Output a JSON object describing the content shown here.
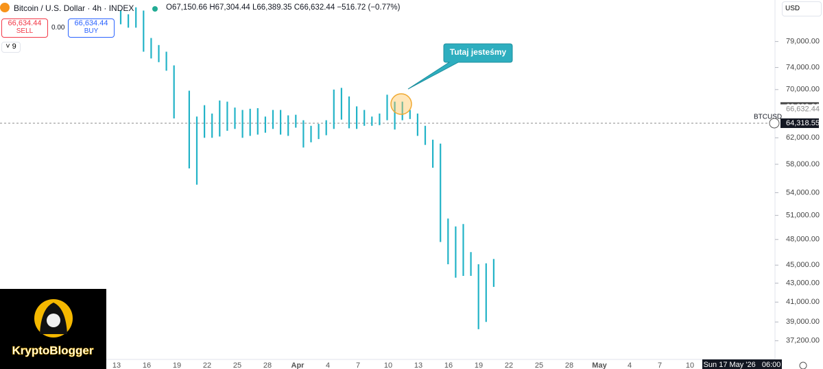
{
  "header": {
    "symbol": "Bitcoin / U.S. Dollar · 4h · INDEX",
    "open": "O67,150.66",
    "high": "H67,304.44",
    "low": "L66,389.35",
    "close": "C66,632.44",
    "change": "−516.72 (−0.77%)"
  },
  "trade": {
    "sell_price": "66,634.44",
    "sell": "SELL",
    "spread": "0.00",
    "buy_price": "66,634.44",
    "buy": "BUY"
  },
  "indicators_count": "9",
  "currency": "USD",
  "annotation": "Tutaj jesteśmy",
  "crosshair_date": "Sun 17 May '26   06:00",
  "logo": "KryptoBlogger",
  "chart_data": {
    "type": "range-bar",
    "color": "#22b3c7",
    "log_scale": true,
    "high": [
      85400,
      84600,
      86100,
      85400,
      79700,
      78300,
      77000,
      74400,
      null,
      69800,
      65400,
      67300,
      65900,
      68100,
      67900,
      66900,
      66500,
      66700,
      66800,
      65400,
      66500,
      66500,
      65600,
      65700,
      64800,
      63900,
      64200,
      64800,
      70000,
      70300,
      68800,
      67100,
      66500,
      65400,
      65900,
      69100,
      67900,
      67900,
      66500,
      65900,
      63900,
      61700,
      61100,
      50600,
      49600,
      49900,
      46500,
      45100,
      45200,
      45700
    ],
    "low": [
      82500,
      81800,
      81800,
      77000,
      75700,
      75000,
      73400,
      65100,
      null,
      57400,
      55100,
      62000,
      62000,
      62200,
      63100,
      63400,
      62000,
      62300,
      62500,
      62800,
      63400,
      62500,
      62300,
      63600,
      60500,
      61300,
      61800,
      62400,
      63400,
      64900,
      63500,
      63400,
      63900,
      63900,
      64000,
      64800,
      63300,
      64800,
      65000,
      62300,
      60900,
      57500,
      47700,
      45100,
      43600,
      43800,
      43800,
      38300,
      39000,
      42600
    ],
    "ylim": [
      35800,
      87700
    ],
    "yticks": [
      {
        "value": 79000,
        "label": "79,000.00"
      },
      {
        "value": 74000,
        "label": "74,000.00"
      },
      {
        "value": 70000,
        "label": "70,000.00"
      },
      {
        "value": 62000,
        "label": "62,000.00"
      },
      {
        "value": 58000,
        "label": "58,000.00"
      },
      {
        "value": 54000,
        "label": "54,000.00"
      },
      {
        "value": 51000,
        "label": "51,000.00"
      },
      {
        "value": 48000,
        "label": "48,000.00"
      },
      {
        "value": 45000,
        "label": "45,000.00"
      },
      {
        "value": 43000,
        "label": "43,000.00"
      },
      {
        "value": 41000,
        "label": "41,000.00"
      },
      {
        "value": 39000,
        "label": "39,000.00"
      },
      {
        "value": 37200,
        "label": "37,200.00"
      }
    ],
    "x_labels": [
      "13",
      "16",
      "19",
      "22",
      "25",
      "28",
      "Apr",
      "4",
      "7",
      "10",
      "13",
      "16",
      "19",
      "22",
      "25",
      "28",
      "May",
      "4",
      "7",
      "10"
    ],
    "series_name": "BTCUSD",
    "price_tags": [
      {
        "value": 66993.86,
        "label": "66,993.86"
      },
      {
        "value": 66632.44,
        "label": "66,632.44"
      },
      {
        "value": 64318.55,
        "label": "64,318.55"
      }
    ]
  }
}
